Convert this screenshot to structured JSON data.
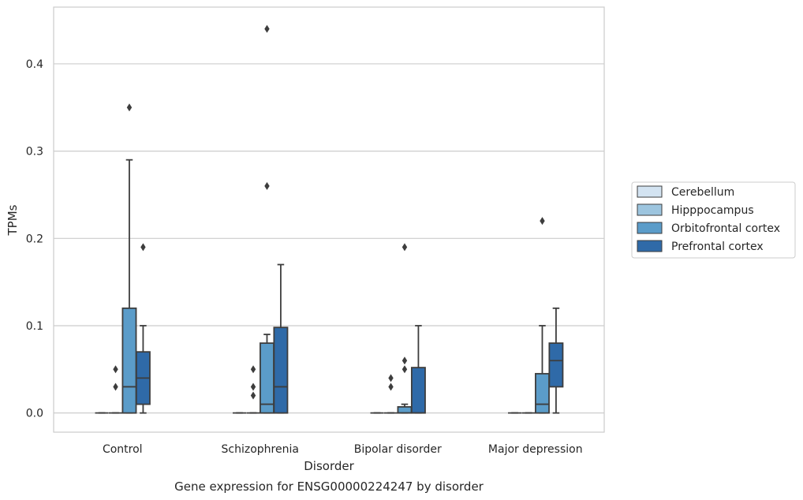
{
  "chart_data": {
    "type": "box",
    "caption": "Gene expression for ENSG00000224247 by disorder",
    "xlabel": "Disorder",
    "ylabel": "TPMs",
    "ylim": [
      -0.022,
      0.465
    ],
    "yticks": [
      0.0,
      0.1,
      0.2,
      0.3,
      0.4
    ],
    "ytick_labels": [
      "0.0",
      "0.1",
      "0.2",
      "0.3",
      "0.4"
    ],
    "grid": "horizontal",
    "legend_position": "right",
    "categories": [
      "Control",
      "Schizophrenia",
      "Bipolar disorder",
      "Major depression"
    ],
    "series": [
      {
        "name": "Cerebellum",
        "color": "#d3e3f1",
        "boxes": [
          {
            "q1": 0,
            "median": 0,
            "q3": 0,
            "whislo": 0,
            "whishi": 0,
            "fliers": []
          },
          {
            "q1": 0,
            "median": 0,
            "q3": 0,
            "whislo": 0,
            "whishi": 0,
            "fliers": []
          },
          {
            "q1": 0,
            "median": 0,
            "q3": 0,
            "whislo": 0,
            "whishi": 0,
            "fliers": []
          },
          {
            "q1": 0,
            "median": 0,
            "q3": 0,
            "whislo": 0,
            "whishi": 0,
            "fliers": []
          }
        ]
      },
      {
        "name": "Hipppocampus",
        "color": "#9dc5df",
        "boxes": [
          {
            "q1": 0,
            "median": 0,
            "q3": 0,
            "whislo": 0,
            "whishi": 0,
            "fliers": [
              0.03,
              0.05
            ]
          },
          {
            "q1": 0,
            "median": 0,
            "q3": 0,
            "whislo": 0,
            "whishi": 0,
            "fliers": [
              0.02,
              0.03,
              0.05
            ]
          },
          {
            "q1": 0,
            "median": 0,
            "q3": 0,
            "whislo": 0,
            "whishi": 0,
            "fliers": [
              0.03,
              0.04
            ]
          },
          {
            "q1": 0,
            "median": 0,
            "q3": 0,
            "whislo": 0,
            "whishi": 0,
            "fliers": []
          }
        ]
      },
      {
        "name": "Orbitofrontal cortex",
        "color": "#5b9cc9",
        "boxes": [
          {
            "q1": 0,
            "median": 0.03,
            "q3": 0.12,
            "whislo": 0,
            "whishi": 0.29,
            "fliers": [
              0.35
            ]
          },
          {
            "q1": 0,
            "median": 0.01,
            "q3": 0.08,
            "whislo": 0,
            "whishi": 0.09,
            "fliers": [
              0.26,
              0.44
            ]
          },
          {
            "q1": 0,
            "median": 0,
            "q3": 0.007,
            "whislo": 0,
            "whishi": 0.01,
            "fliers": [
              0.05,
              0.06,
              0.19
            ]
          },
          {
            "q1": 0,
            "median": 0.01,
            "q3": 0.045,
            "whislo": 0,
            "whishi": 0.1,
            "fliers": [
              0.22
            ]
          }
        ]
      },
      {
        "name": "Prefrontal cortex",
        "color": "#2f6aa8",
        "boxes": [
          {
            "q1": 0.01,
            "median": 0.04,
            "q3": 0.07,
            "whislo": 0,
            "whishi": 0.1,
            "fliers": [
              0.19
            ]
          },
          {
            "q1": 0,
            "median": 0.03,
            "q3": 0.098,
            "whislo": 0,
            "whishi": 0.17,
            "fliers": []
          },
          {
            "q1": 0,
            "median": 0,
            "q3": 0.052,
            "whislo": 0,
            "whishi": 0.1,
            "fliers": []
          },
          {
            "q1": 0.03,
            "median": 0.06,
            "q3": 0.08,
            "whislo": 0,
            "whishi": 0.12,
            "fliers": []
          }
        ]
      }
    ]
  }
}
